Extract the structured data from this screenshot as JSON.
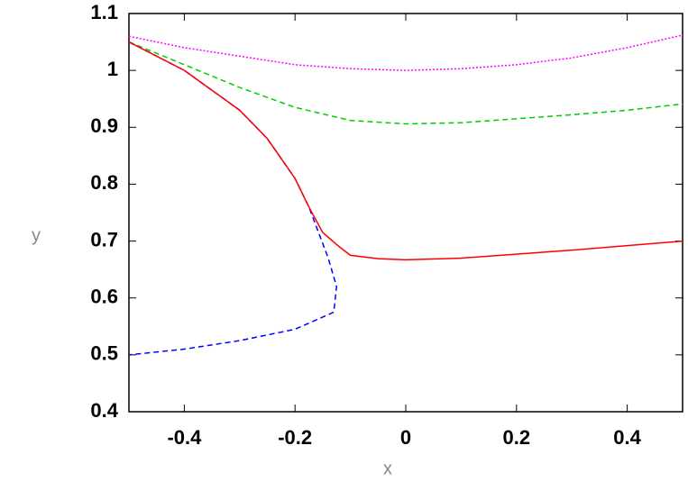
{
  "chart_data": {
    "type": "line",
    "xlabel": "x",
    "ylabel": "y",
    "xlim": [
      -0.5,
      0.5
    ],
    "xticks": [
      -0.4,
      -0.2,
      0,
      0.2,
      0.4
    ],
    "ylim": [
      0.4,
      1.1
    ],
    "yticks": [
      0.4,
      0.5,
      0.6,
      0.7,
      0.8,
      0.9,
      1,
      1.1
    ],
    "series": [
      {
        "color": "#ff00ff",
        "dash": "dotted",
        "x": [
          -0.5,
          -0.4,
          -0.3,
          -0.2,
          -0.1,
          0,
          0.1,
          0.2,
          0.3,
          0.4,
          0.5
        ],
        "values": [
          1.06,
          1.04,
          1.025,
          1.01,
          1.003,
          1.0,
          1.003,
          1.01,
          1.022,
          1.04,
          1.062
        ]
      },
      {
        "color": "#00cc00",
        "dash": "dashed",
        "x": [
          -0.5,
          -0.4,
          -0.3,
          -0.2,
          -0.1,
          0,
          0.1,
          0.2,
          0.3,
          0.4,
          0.5
        ],
        "values": [
          1.05,
          1.01,
          0.97,
          0.935,
          0.912,
          0.906,
          0.908,
          0.915,
          0.922,
          0.93,
          0.941
        ]
      },
      {
        "color": "#0000ff",
        "dash": "dashed",
        "x": [
          -0.5,
          -0.4,
          -0.3,
          -0.25,
          -0.2,
          -0.175,
          -0.14,
          -0.125,
          -0.13,
          -0.2,
          -0.3,
          -0.4,
          -0.5
        ],
        "values": [
          1.05,
          1.0,
          0.93,
          0.88,
          0.81,
          0.76,
          0.67,
          0.62,
          0.575,
          0.545,
          0.525,
          0.51,
          0.5
        ]
      },
      {
        "color": "#ff0000",
        "dash": "solid",
        "x": [
          -0.5,
          -0.4,
          -0.3,
          -0.25,
          -0.2,
          -0.175,
          -0.15,
          -0.12,
          -0.1,
          -0.05,
          0,
          0.1,
          0.2,
          0.3,
          0.4,
          0.5
        ],
        "values": [
          1.05,
          1.0,
          0.93,
          0.88,
          0.81,
          0.76,
          0.715,
          0.69,
          0.675,
          0.669,
          0.667,
          0.67,
          0.677,
          0.684,
          0.692,
          0.7
        ]
      }
    ]
  }
}
